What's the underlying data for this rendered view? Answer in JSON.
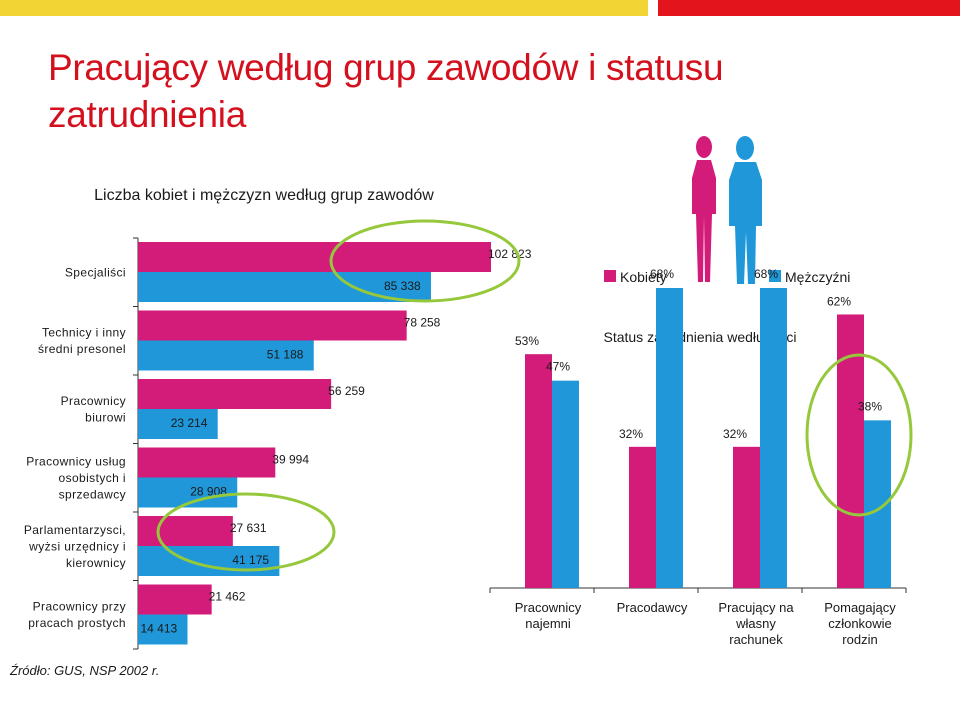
{
  "title": "Pracujący według grup zawodów i statusu zatrudnienia",
  "source": "Źródło: GUS, NSP 2002 r.",
  "colors": {
    "women": "#d31c7a",
    "men": "#1f97d9",
    "highlight": "#96c83c",
    "accent": "#d4101e",
    "yellow": "#f2d534"
  },
  "legend": {
    "women": "Kobiety",
    "men": "Mężczyźni"
  },
  "icons": [
    "woman-silhouette-icon",
    "man-silhouette-icon"
  ],
  "chart_data": [
    {
      "type": "bar",
      "orientation": "horizontal",
      "title": "Liczba kobiet i mężczyzn według grup zawodów",
      "categories": [
        [
          "Specjaliści"
        ],
        [
          "Technicy i inny",
          "średni presonel"
        ],
        [
          "Pracownicy",
          "biurowi"
        ],
        [
          "Pracownicy usług",
          "osobistych i",
          "sprzedawcy"
        ],
        [
          "Parlamentarzysci,",
          "wyżsi urzędnicy i",
          "kierownicy"
        ],
        [
          "Pracownicy przy",
          "pracach prostych"
        ]
      ],
      "series": [
        {
          "name": "Mężczyźni",
          "values": [
            85338,
            51188,
            23214,
            28908,
            41175,
            14413
          ],
          "labels": [
            "85 338",
            "51 188",
            "23 214",
            "28 908",
            "41 175",
            "14 413"
          ]
        },
        {
          "name": "Kobiety",
          "values": [
            102823,
            78258,
            56259,
            39994,
            27631,
            21462
          ],
          "labels": [
            "102 823",
            "78 258",
            "56 259",
            "39 994",
            "27 631",
            "21 462"
          ]
        }
      ],
      "xlim": [
        0,
        110000
      ],
      "highlighted": [
        "Specjaliści",
        "Parlamentarzysci, wyżsi urzędnicy i kierownicy"
      ]
    },
    {
      "type": "bar",
      "title": "Status zatrudnienia według płci",
      "categories": [
        [
          "Pracownicy",
          "najemni"
        ],
        [
          "Pracodawcy"
        ],
        [
          "Pracujący na",
          "własny",
          "rachunek"
        ],
        [
          "Pomagający",
          "członkowie",
          "rodzin"
        ]
      ],
      "series": [
        {
          "name": "Kobiety",
          "values": [
            53,
            32,
            32,
            62
          ],
          "labels": [
            "53%",
            "32%",
            "32%",
            "62%"
          ]
        },
        {
          "name": "Mężczyźni",
          "values": [
            47,
            68,
            68,
            38
          ],
          "labels": [
            "47%",
            "68%",
            "68%",
            "38%"
          ]
        }
      ],
      "ylim": [
        0,
        70
      ],
      "highlighted": [
        "Pomagający członkowie rodzin"
      ]
    }
  ]
}
